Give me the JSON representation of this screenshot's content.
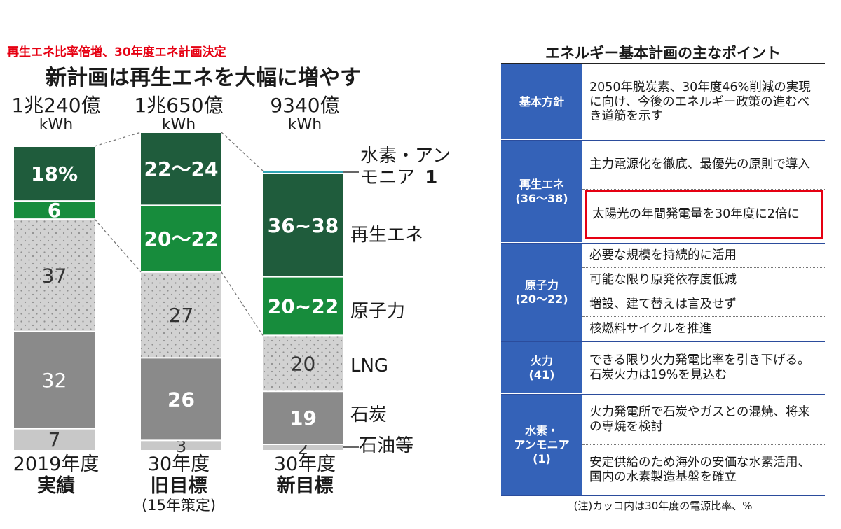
{
  "headline": "再生エネ比率倍増、30年度エネ計画決定",
  "chart_title": "新計画は再生エネを大幅に増やす",
  "colors": {
    "renewable": "#1f5c3c",
    "nuclear": "#178c3c",
    "lng": "#d2d2d2",
    "coal": "#8a8a8a",
    "oil": "#c8c8c8",
    "hydrogen": "#2fa4b4",
    "accent_red": "#e60012",
    "panel_blue": "#3462b8"
  },
  "chart_data": {
    "type": "bar",
    "stacked": true,
    "categories": [
      "2019年度実績",
      "30年度旧目標",
      "30年度新目標"
    ],
    "totals": [
      {
        "value": "1兆240億",
        "unit": "kWh"
      },
      {
        "value": "1兆650億",
        "unit": "kWh"
      },
      {
        "value": "9340億",
        "unit": "kWh"
      }
    ],
    "column_captions": [
      {
        "line1": "2019年度",
        "line2": "実績",
        "line3": ""
      },
      {
        "line1": "30年度",
        "line2": "旧目標",
        "line3": "(15年策定)"
      },
      {
        "line1": "30年度",
        "line2": "新目標",
        "line3": ""
      }
    ],
    "series_order_top_to_bottom": [
      "水素・アンモニア",
      "再生エネ",
      "原子力",
      "LNG",
      "石炭",
      "石油等"
    ],
    "series": [
      {
        "name": "水素・アンモニア",
        "values": [
          0,
          0,
          1
        ],
        "labels": [
          "",
          "",
          "1"
        ]
      },
      {
        "name": "再生エネ",
        "values": [
          18,
          23,
          37
        ],
        "labels": [
          "18%",
          "22〜24",
          "36~38"
        ]
      },
      {
        "name": "原子力",
        "values": [
          6,
          21,
          21
        ],
        "labels": [
          "6",
          "20〜22",
          "20~22"
        ]
      },
      {
        "name": "LNG",
        "values": [
          37,
          27,
          20
        ],
        "labels": [
          "37",
          "27",
          "20"
        ]
      },
      {
        "name": "石炭",
        "values": [
          32,
          26,
          19
        ],
        "labels": [
          "32",
          "26",
          "19"
        ]
      },
      {
        "name": "石油等",
        "values": [
          7,
          3,
          2
        ],
        "labels": [
          "7",
          "3",
          "2"
        ]
      }
    ],
    "side_labels": [
      {
        "series": "水素・アンモニア",
        "text_line1": "水素・アン",
        "text_line2": "モニア",
        "value": "1"
      },
      {
        "series": "再生エネ",
        "text": "再生エネ"
      },
      {
        "series": "原子力",
        "text": "原子力"
      },
      {
        "series": "LNG",
        "text": "LNG"
      },
      {
        "series": "石炭",
        "text": "石炭"
      },
      {
        "series": "石油等",
        "text": "石油等"
      }
    ],
    "unit": "%"
  },
  "panel": {
    "title": "エネルギー基本計画の主なポイント",
    "rows": [
      {
        "head": [
          "基本方針"
        ],
        "items": [
          {
            "text": "2050年脱炭素、30年度46%削減の実現に向け、今後のエネルギー政策の進むべき道筋を示す",
            "highlight": false
          }
        ]
      },
      {
        "head": [
          "再生エネ",
          "(36〜38)"
        ],
        "items": [
          {
            "text": "主力電源化を徹底、最優先の原則で導入",
            "highlight": false
          },
          {
            "text": "太陽光の年間発電量を30年度に2倍に",
            "highlight": true
          }
        ]
      },
      {
        "head": [
          "原子力",
          "(20〜22)"
        ],
        "items": [
          {
            "text": "必要な規模を持続的に活用",
            "highlight": false
          },
          {
            "text": "可能な限り原発依存度低減",
            "highlight": false
          },
          {
            "text": "増設、建て替えは言及せず",
            "highlight": false
          },
          {
            "text": "核燃料サイクルを推進",
            "highlight": false
          }
        ]
      },
      {
        "head": [
          "火力",
          "(41)"
        ],
        "items": [
          {
            "text": "できる限り火力発電比率を引き下げる。石炭火力は19%を見込む",
            "highlight": false
          }
        ]
      },
      {
        "head": [
          "水素・",
          "アンモニア",
          "(1)"
        ],
        "items": [
          {
            "text": "火力発電所で石炭やガスとの混焼、将来の専焼を検討",
            "highlight": false
          },
          {
            "text": "安定供給のため海外の安価な水素活用、国内の水素製造基盤を確立",
            "highlight": false
          }
        ]
      }
    ],
    "note": "(注)カッコ内は30年度の電源比率、%"
  }
}
